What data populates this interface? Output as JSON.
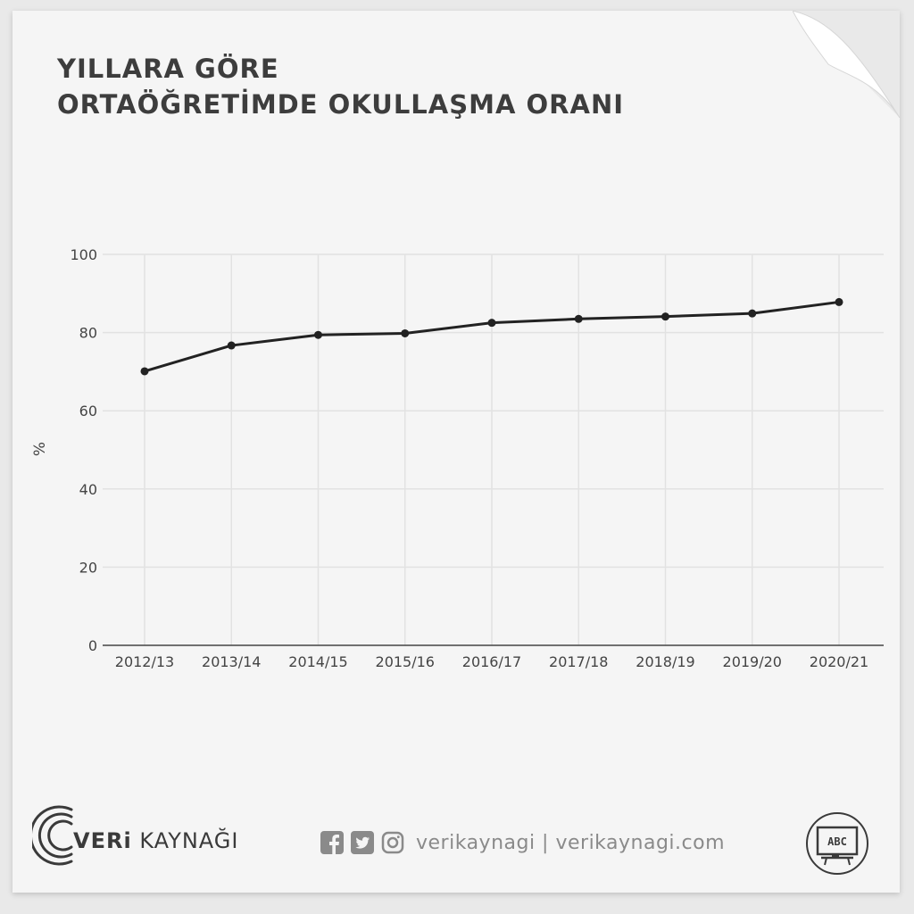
{
  "title": {
    "line1": "YILLARA GÖRE",
    "line2": "ORTAÖĞRETİMDE OKULLAŞMA ORANI"
  },
  "chart_data": {
    "type": "line",
    "categories": [
      "2012/13",
      "2013/14",
      "2014/15",
      "2015/16",
      "2016/17",
      "2017/18",
      "2018/19",
      "2019/20",
      "2020/21"
    ],
    "series": [
      {
        "values": [
          70.1,
          76.7,
          79.4,
          79.8,
          82.5,
          83.5,
          84.1,
          84.9,
          87.8
        ]
      }
    ],
    "ylabel": "%",
    "ylim": [
      0,
      100
    ],
    "yticks": [
      0,
      20,
      40,
      60,
      80,
      100
    ],
    "grid": true,
    "line_color": "#222222"
  },
  "footer": {
    "brand_bold": "VERi",
    "brand_rest": " KAYNAĞI",
    "handle": "verikaynagi | verikaynagi.com",
    "badge": "ABC"
  }
}
